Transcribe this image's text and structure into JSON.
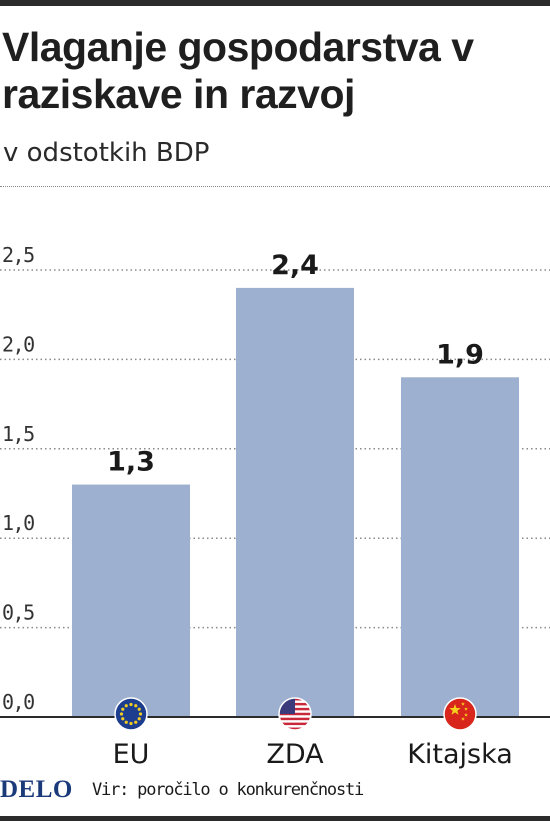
{
  "title": "Vlaganje gospodarstva v raziskave in razvoj",
  "subtitle": "v odstotkih BDP",
  "footer": {
    "logo": "DELO",
    "source": "Vir: poročilo o konkurenčnosti"
  },
  "colors": {
    "bar": "#9eb0cf",
    "grid": "#8a8a8a",
    "eu_flag": "#1d3d8f",
    "eu_stars": "#f2cc1e",
    "us_red": "#c8283a",
    "us_blue": "#3b3a7a",
    "cn_red": "#d8261c",
    "cn_star": "#f5d21c"
  },
  "chart_data": {
    "type": "bar",
    "categories": [
      "EU",
      "ZDA",
      "Kitajska"
    ],
    "values": [
      1.3,
      2.4,
      1.9
    ],
    "value_labels": [
      "1,3",
      "2,4",
      "1,9"
    ],
    "category_icons": [
      "eu-flag-icon",
      "us-flag-icon",
      "china-flag-icon"
    ],
    "ylim": [
      0,
      2.5
    ],
    "yticks": [
      0.0,
      0.5,
      1.0,
      1.5,
      2.0,
      2.5
    ],
    "ytick_labels": [
      "0,0",
      "0,5",
      "1,0",
      "1,5",
      "2,0",
      "2,5"
    ],
    "grid": true,
    "xlabel": "",
    "ylabel": ""
  }
}
